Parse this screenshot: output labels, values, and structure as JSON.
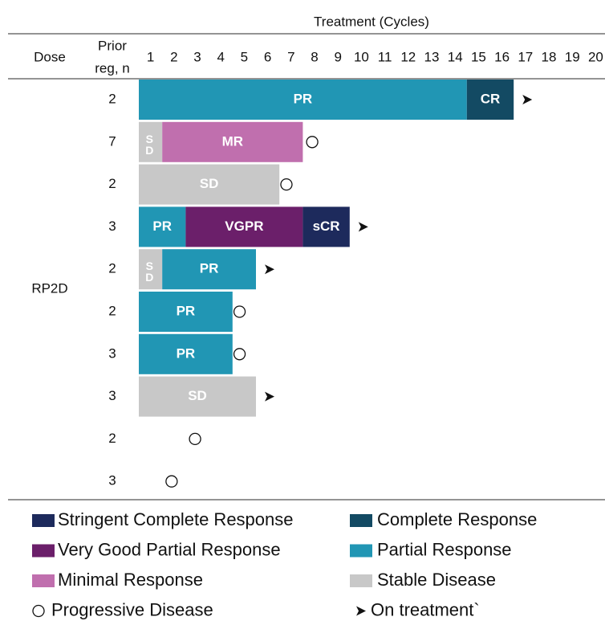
{
  "chart_data": {
    "type": "swimmer",
    "title": "Treatment (Cycles)",
    "dose_header": "Dose",
    "prior_header": [
      "Prior",
      "reg, n"
    ],
    "dose": "RP2D",
    "cycles": [
      1,
      2,
      3,
      4,
      5,
      6,
      7,
      8,
      9,
      10,
      11,
      12,
      13,
      14,
      15,
      16,
      17,
      18,
      19,
      20
    ],
    "xlim": [
      0,
      20
    ],
    "rows": [
      {
        "prior": 2,
        "segments": [
          {
            "label": "PR",
            "value": 14,
            "color": "#2196b4"
          },
          {
            "label": "CR",
            "value": 2,
            "color": "#134a63"
          }
        ],
        "marker": {
          "type": "arrow"
        }
      },
      {
        "prior": 7,
        "segments": [
          {
            "label": "SD",
            "value": 1,
            "color": "#c8c8c8"
          },
          {
            "label": "MR",
            "value": 6,
            "color": "#c06fae"
          }
        ],
        "marker": {
          "type": "circle",
          "x": 7.4
        }
      },
      {
        "prior": 2,
        "segments": [
          {
            "label": "SD",
            "value": 6,
            "color": "#c8c8c8"
          }
        ],
        "marker": {
          "type": "circle",
          "x": 6.3
        }
      },
      {
        "prior": 3,
        "segments": [
          {
            "label": "PR",
            "value": 2,
            "color": "#2196b4"
          },
          {
            "label": "VGPR",
            "value": 5,
            "color": "#6b1f6a"
          },
          {
            "label": "sCR",
            "value": 2,
            "color": "#1d2a5c"
          }
        ],
        "marker": {
          "type": "arrow"
        }
      },
      {
        "prior": 2,
        "segments": [
          {
            "label": "SD",
            "value": 1,
            "color": "#c8c8c8"
          },
          {
            "label": "PR",
            "value": 4,
            "color": "#2196b4"
          }
        ],
        "marker": {
          "type": "arrow"
        }
      },
      {
        "prior": 2,
        "segments": [
          {
            "label": "PR",
            "value": 4,
            "color": "#2196b4"
          }
        ],
        "marker": {
          "type": "circle",
          "x": 4.3
        }
      },
      {
        "prior": 3,
        "segments": [
          {
            "label": "PR",
            "value": 4,
            "color": "#2196b4"
          }
        ],
        "marker": {
          "type": "circle",
          "x": 4.3
        }
      },
      {
        "prior": 3,
        "segments": [
          {
            "label": "SD",
            "value": 5,
            "color": "#c8c8c8"
          }
        ],
        "marker": {
          "type": "arrow"
        }
      },
      {
        "prior": 2,
        "segments": [],
        "marker": {
          "type": "circle",
          "x": 2.4
        }
      },
      {
        "prior": 3,
        "segments": [],
        "marker": {
          "type": "circle",
          "x": 1.4
        }
      }
    ],
    "legend": [
      {
        "name": "Stringent Complete Response",
        "color": "#1d2a5c"
      },
      {
        "name": "Complete Response",
        "color": "#134a63"
      },
      {
        "name": "Very Good Partial Response",
        "color": "#6b1f6a"
      },
      {
        "name": "Partial Response",
        "color": "#2196b4"
      },
      {
        "name": "Minimal Response",
        "color": "#c06fae"
      },
      {
        "name": "Stable Disease",
        "color": "#c8c8c8"
      },
      {
        "name": "Progressive Disease",
        "marker": "circle"
      },
      {
        "name": "On treatment`",
        "marker": "arrow"
      }
    ]
  }
}
